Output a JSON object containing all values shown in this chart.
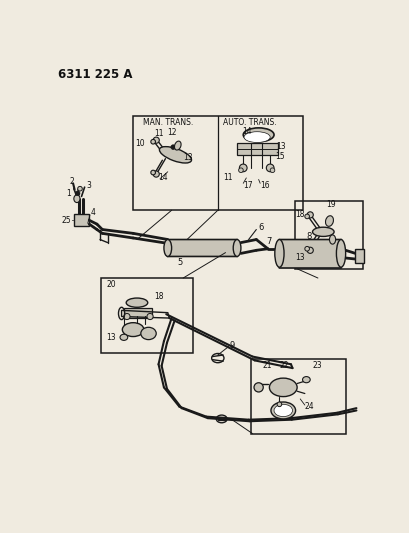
{
  "title": "6311 225 A",
  "bg_color": "#f0ebe0",
  "line_color": "#1a1a1a",
  "text_color": "#111111",
  "fill_light": "#c8c4b8",
  "fill_dark": "#888880"
}
